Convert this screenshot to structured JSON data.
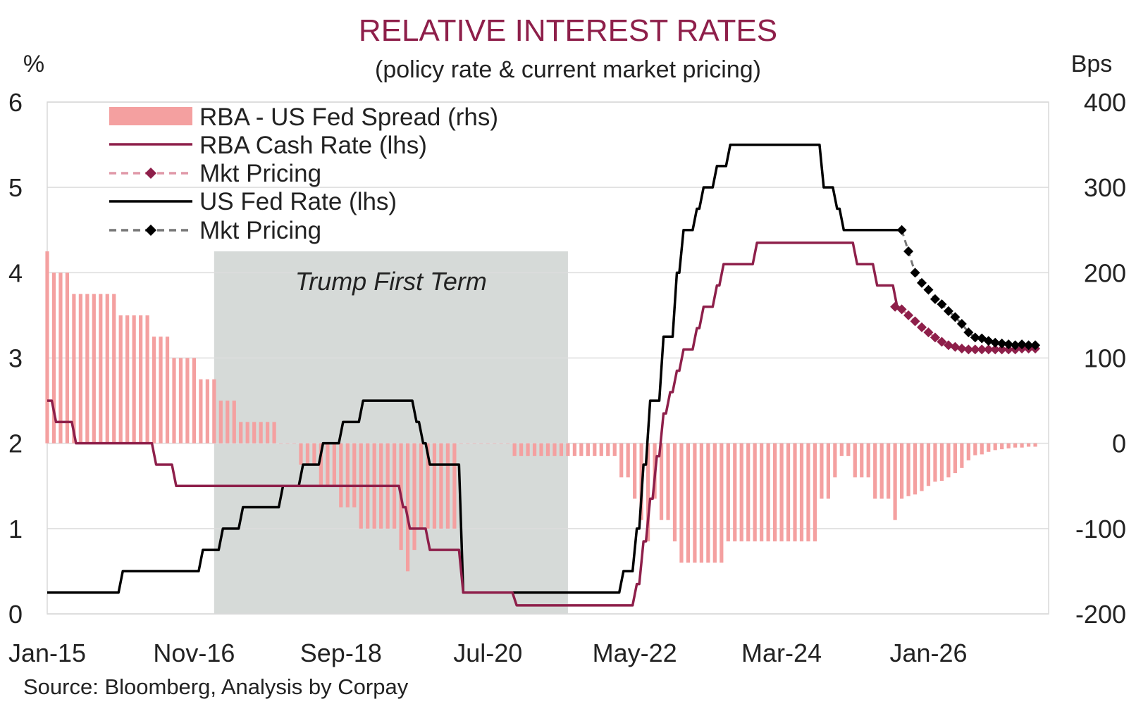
{
  "chart_data": {
    "type": "line",
    "title": "RELATIVE INTEREST RATES",
    "subtitle": "(policy rate & current market pricing)",
    "y_left_unit": "%",
    "y_right_unit": "Bps",
    "source": "Source: Bloomberg, Analysis by Corpay",
    "annotation": "Trump First Term",
    "x_tick_labels": [
      "Jan-15",
      "Nov-16",
      "Sep-18",
      "Jul-20",
      "May-22",
      "Mar-24",
      "Jan-26"
    ],
    "x_tick_dates": [
      "2015-01",
      "2016-11",
      "2018-09",
      "2020-07",
      "2022-05",
      "2024-03",
      "2026-01"
    ],
    "y_left_ticks": [
      "0",
      "1",
      "2",
      "3",
      "4",
      "5",
      "6"
    ],
    "y_right_ticks": [
      "-200",
      "-100",
      "0",
      "100",
      "200",
      "300",
      "400"
    ],
    "ylim_left": [
      0,
      6
    ],
    "ylim_right": [
      -200,
      400
    ],
    "xlim": [
      "2015-01",
      "2027-07"
    ],
    "grid": "horizontal",
    "legend_position": "top-left",
    "shaded_period": {
      "start": "2017-02",
      "end": "2021-07"
    },
    "colors": {
      "title": "#8e1f4a",
      "rba": "#8e1f4a",
      "rba_pricing": "#8e1f4a",
      "rba_pricing_line": "#e098a8",
      "fed": "#000000",
      "fed_pricing_line": "#777777",
      "spread": "#f4a0a0",
      "shade": "#c8cdcb",
      "grid": "#dddddd"
    },
    "legend": [
      {
        "key": "spread",
        "label": "RBA - US Fed Spread (rhs)"
      },
      {
        "key": "rba",
        "label": "RBA Cash Rate (lhs)"
      },
      {
        "key": "rba_pricing",
        "label": "Mkt Pricing"
      },
      {
        "key": "fed",
        "label": "US Fed Rate (lhs)"
      },
      {
        "key": "fed_pricing",
        "label": "Mkt Pricing"
      }
    ],
    "series": [
      {
        "name": "RBA Cash Rate (lhs)",
        "axis": "left",
        "points": [
          [
            "2015-01",
            2.5
          ],
          [
            "2015-02",
            2.25
          ],
          [
            "2015-05",
            2.0
          ],
          [
            "2016-05",
            1.75
          ],
          [
            "2016-08",
            1.5
          ],
          [
            "2019-06",
            1.25
          ],
          [
            "2019-07",
            1.0
          ],
          [
            "2019-10",
            0.75
          ],
          [
            "2020-03",
            0.25
          ],
          [
            "2020-11",
            0.1
          ],
          [
            "2022-05",
            0.35
          ],
          [
            "2022-06",
            0.85
          ],
          [
            "2022-07",
            1.35
          ],
          [
            "2022-08",
            1.85
          ],
          [
            "2022-09",
            2.35
          ],
          [
            "2022-10",
            2.6
          ],
          [
            "2022-11",
            2.85
          ],
          [
            "2022-12",
            3.1
          ],
          [
            "2023-02",
            3.35
          ],
          [
            "2023-03",
            3.6
          ],
          [
            "2023-05",
            3.85
          ],
          [
            "2023-06",
            4.1
          ],
          [
            "2023-11",
            4.35
          ],
          [
            "2025-02",
            4.1
          ],
          [
            "2025-05",
            3.85
          ],
          [
            "2025-08",
            3.6
          ]
        ]
      },
      {
        "name": "Mkt Pricing",
        "axis": "left",
        "links_to": "RBA Cash Rate (lhs)",
        "points": [
          [
            "2025-08",
            3.6
          ],
          [
            "2025-09",
            3.57
          ],
          [
            "2025-10",
            3.5
          ],
          [
            "2025-11",
            3.43
          ],
          [
            "2025-12",
            3.36
          ],
          [
            "2026-01",
            3.3
          ],
          [
            "2026-02",
            3.24
          ],
          [
            "2026-03",
            3.19
          ],
          [
            "2026-04",
            3.15
          ],
          [
            "2026-05",
            3.13
          ],
          [
            "2026-06",
            3.11
          ],
          [
            "2026-07",
            3.1
          ],
          [
            "2026-08",
            3.1
          ],
          [
            "2026-09",
            3.1
          ],
          [
            "2026-10",
            3.1
          ],
          [
            "2026-11",
            3.1
          ],
          [
            "2026-12",
            3.1
          ],
          [
            "2027-01",
            3.1
          ],
          [
            "2027-02",
            3.1
          ],
          [
            "2027-03",
            3.11
          ],
          [
            "2027-04",
            3.11
          ],
          [
            "2027-05",
            3.11
          ]
        ]
      },
      {
        "name": "US Fed Rate (lhs)",
        "axis": "left",
        "points": [
          [
            "2015-01",
            0.25
          ],
          [
            "2015-12",
            0.5
          ],
          [
            "2016-12",
            0.75
          ],
          [
            "2017-03",
            1.0
          ],
          [
            "2017-06",
            1.25
          ],
          [
            "2017-12",
            1.5
          ],
          [
            "2018-03",
            1.75
          ],
          [
            "2018-06",
            2.0
          ],
          [
            "2018-09",
            2.25
          ],
          [
            "2018-12",
            2.5
          ],
          [
            "2019-08",
            2.25
          ],
          [
            "2019-09",
            2.0
          ],
          [
            "2019-10",
            1.75
          ],
          [
            "2020-03",
            0.25
          ],
          [
            "2022-03",
            0.5
          ],
          [
            "2022-05",
            1.0
          ],
          [
            "2022-06",
            1.75
          ],
          [
            "2022-07",
            2.5
          ],
          [
            "2022-09",
            3.25
          ],
          [
            "2022-11",
            4.0
          ],
          [
            "2022-12",
            4.5
          ],
          [
            "2023-02",
            4.75
          ],
          [
            "2023-03",
            5.0
          ],
          [
            "2023-05",
            5.25
          ],
          [
            "2023-07",
            5.5
          ],
          [
            "2024-09",
            5.0
          ],
          [
            "2024-11",
            4.75
          ],
          [
            "2024-12",
            4.5
          ],
          [
            "2025-09",
            4.5
          ]
        ]
      },
      {
        "name": "Mkt Pricing",
        "axis": "left",
        "links_to": "US Fed Rate (lhs)",
        "points": [
          [
            "2025-09",
            4.5
          ],
          [
            "2025-10",
            4.25
          ],
          [
            "2025-11",
            4.0
          ],
          [
            "2025-12",
            3.88
          ],
          [
            "2026-01",
            3.8
          ],
          [
            "2026-02",
            3.69
          ],
          [
            "2026-03",
            3.63
          ],
          [
            "2026-04",
            3.55
          ],
          [
            "2026-05",
            3.48
          ],
          [
            "2026-06",
            3.4
          ],
          [
            "2026-07",
            3.3
          ],
          [
            "2026-08",
            3.24
          ],
          [
            "2026-09",
            3.23
          ],
          [
            "2026-10",
            3.2
          ],
          [
            "2026-11",
            3.18
          ],
          [
            "2026-12",
            3.17
          ],
          [
            "2027-01",
            3.16
          ],
          [
            "2027-02",
            3.15
          ],
          [
            "2027-03",
            3.16
          ],
          [
            "2027-04",
            3.15
          ],
          [
            "2027-05",
            3.15
          ]
        ]
      },
      {
        "name": "RBA - US Fed Spread (rhs)",
        "axis": "right",
        "kind": "bars",
        "points": [
          [
            "2015-01",
            225
          ],
          [
            "2015-02",
            200
          ],
          [
            "2015-05",
            175
          ],
          [
            "2015-12",
            150
          ],
          [
            "2016-05",
            125
          ],
          [
            "2016-08",
            100
          ],
          [
            "2016-12",
            75
          ],
          [
            "2017-03",
            50
          ],
          [
            "2017-06",
            25
          ],
          [
            "2017-12",
            0
          ],
          [
            "2018-03",
            -25
          ],
          [
            "2018-06",
            -50
          ],
          [
            "2018-09",
            -75
          ],
          [
            "2018-12",
            -100
          ],
          [
            "2019-06",
            -125
          ],
          [
            "2019-07",
            -150
          ],
          [
            "2019-08",
            -125
          ],
          [
            "2019-09",
            -100
          ],
          [
            "2019-10",
            -100
          ],
          [
            "2020-03",
            0
          ],
          [
            "2020-11",
            -15
          ],
          [
            "2022-03",
            -40
          ],
          [
            "2022-05",
            -65
          ],
          [
            "2022-06",
            -90
          ],
          [
            "2022-07",
            -115
          ],
          [
            "2022-08",
            -65
          ],
          [
            "2022-09",
            -90
          ],
          [
            "2022-11",
            -115
          ],
          [
            "2022-12",
            -140
          ],
          [
            "2023-02",
            -140
          ],
          [
            "2023-03",
            -140
          ],
          [
            "2023-05",
            -140
          ],
          [
            "2023-06",
            -140
          ],
          [
            "2023-07",
            -115
          ],
          [
            "2023-11",
            -115
          ],
          [
            "2024-09",
            -65
          ],
          [
            "2024-11",
            -40
          ],
          [
            "2024-12",
            -15
          ],
          [
            "2025-02",
            -40
          ],
          [
            "2025-05",
            -65
          ],
          [
            "2025-08",
            -90
          ],
          [
            "2025-09",
            -65
          ],
          [
            "2025-10",
            -62
          ],
          [
            "2025-11",
            -60
          ],
          [
            "2025-12",
            -56
          ],
          [
            "2026-01",
            -50
          ],
          [
            "2026-02",
            -45
          ],
          [
            "2026-03",
            -44
          ],
          [
            "2026-04",
            -40
          ],
          [
            "2026-05",
            -35
          ],
          [
            "2026-06",
            -29
          ],
          [
            "2026-07",
            -20
          ],
          [
            "2026-08",
            -14
          ],
          [
            "2026-09",
            -13
          ],
          [
            "2026-10",
            -10
          ],
          [
            "2026-11",
            -8
          ],
          [
            "2026-12",
            -7
          ],
          [
            "2027-01",
            -6
          ],
          [
            "2027-02",
            -5
          ],
          [
            "2027-03",
            -5
          ],
          [
            "2027-04",
            -4
          ],
          [
            "2027-05",
            -4
          ]
        ]
      }
    ]
  }
}
